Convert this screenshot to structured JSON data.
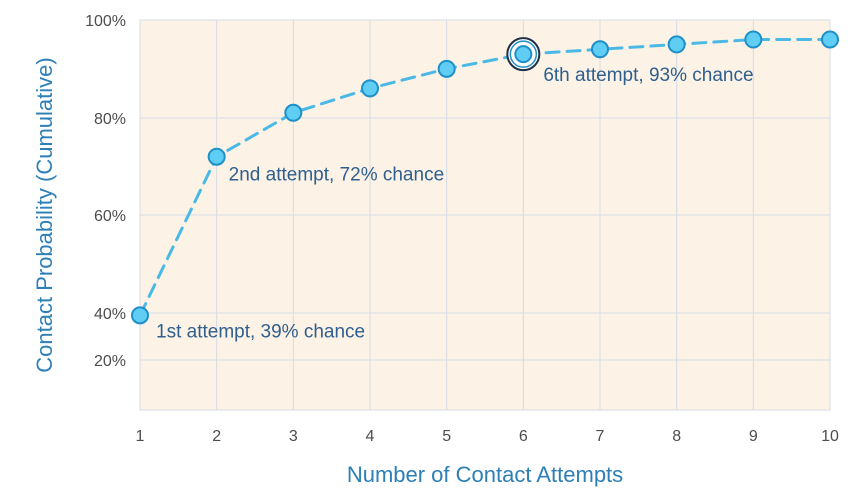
{
  "chart_data": {
    "type": "line",
    "title": "",
    "xlabel": "Number of Contact Attempts",
    "ylabel": "Contact Probability (Cumulative)",
    "x": [
      1,
      2,
      3,
      4,
      5,
      6,
      7,
      8,
      9,
      10
    ],
    "values": [
      39,
      72,
      81,
      86,
      90,
      93,
      94,
      95,
      96,
      96
    ],
    "xlim": [
      1,
      10
    ],
    "x_ticks": [
      "1",
      "2",
      "3",
      "4",
      "5",
      "6",
      "7",
      "8",
      "9",
      "10"
    ],
    "y_ticks": [
      {
        "value": 100,
        "label": "100%"
      },
      {
        "value": 80,
        "label": "80%"
      },
      {
        "value": 60,
        "label": "60%"
      },
      {
        "value": 40,
        "label": "40%"
      },
      {
        "value": 20,
        "label": "20%"
      }
    ],
    "grid": true,
    "highlight_x": 6,
    "annotations": [
      {
        "x": 1,
        "text": "1st attempt, 39% chance"
      },
      {
        "x": 2,
        "text": "2nd attempt, 72% chance"
      },
      {
        "x": 6,
        "text": "6th attempt, 93% chance"
      }
    ],
    "colors": {
      "plot_background": "#fcf2e5",
      "grid": "#d6dde6",
      "line": "#4ab9e6",
      "marker_fill": "#5fcdf4",
      "marker_stroke": "#1f90c7",
      "axis_title": "#2d7fb6",
      "annotation_text": "#2f5f8e",
      "tick_text": "#4d4d4d"
    }
  }
}
